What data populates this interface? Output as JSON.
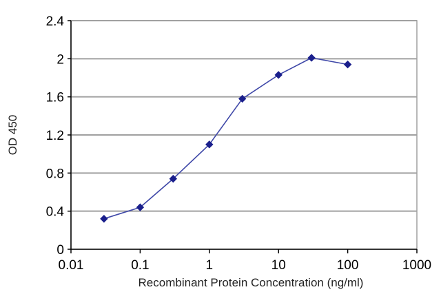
{
  "chart_data": {
    "type": "line",
    "title": "",
    "xlabel": "Recombinant Protein Concentration (ng/ml)",
    "ylabel": "OD 450",
    "xscale": "log",
    "xlim": [
      0.01,
      1000
    ],
    "ylim": [
      0,
      2.4
    ],
    "x_ticks": [
      "0.01",
      "0.1",
      "1",
      "10",
      "100",
      "1000"
    ],
    "y_ticks": [
      "0",
      "0.4",
      "0.8",
      "1.2",
      "1.6",
      "2",
      "2.4"
    ],
    "grid": "horizontal",
    "legend": "none",
    "series": [
      {
        "x": [
          0.03,
          0.1,
          0.3,
          1,
          3,
          10,
          30,
          100
        ],
        "y": [
          0.32,
          0.44,
          0.74,
          1.1,
          1.58,
          1.83,
          2.01,
          1.94
        ],
        "color": "#3f48a8",
        "marker": "diamond",
        "marker_color": "#1a1f8c"
      }
    ],
    "colors": {
      "grid": "#a0a0a0",
      "axis": "#000000",
      "plot_border": "#a0a0a0",
      "line": "#3f48a8",
      "marker": "#1a1f8c"
    }
  }
}
